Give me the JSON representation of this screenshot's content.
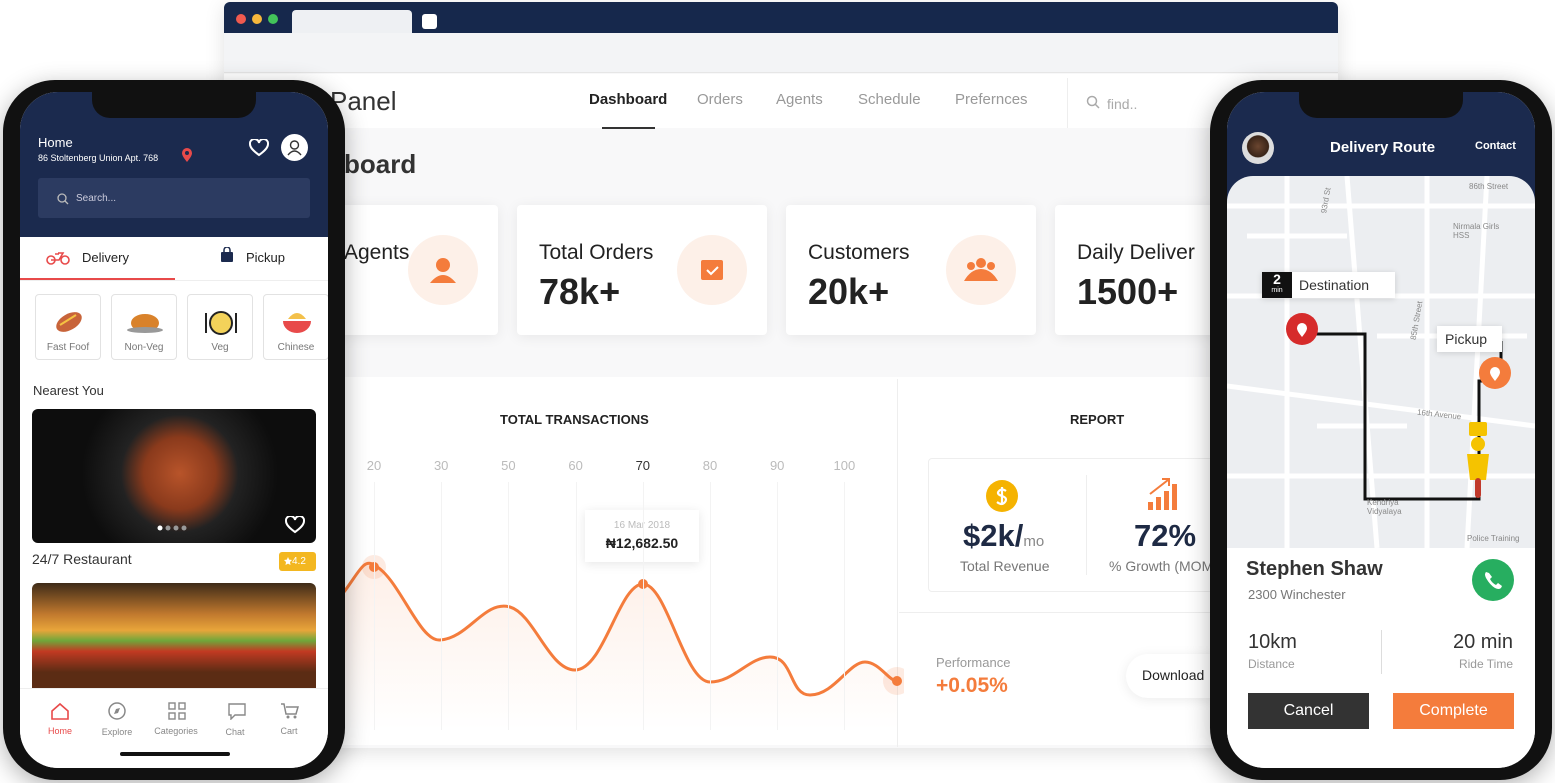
{
  "dashboard": {
    "title": "Panel",
    "nav": [
      "Dashboard",
      "Orders",
      "Agents",
      "Schedule",
      "Prefernces"
    ],
    "search_placeholder": "find..",
    "heading": "board",
    "stats": [
      {
        "label": "Agents"
      },
      {
        "label": "Total Orders",
        "value": "78k+"
      },
      {
        "label": "Customers",
        "value": "20k+"
      },
      {
        "label": "Daily Deliver",
        "value": "1500+"
      }
    ],
    "transactions": {
      "title": "TOTAL TRANSACTIONS",
      "xticks": [
        20,
        30,
        50,
        60,
        70,
        80,
        90,
        100
      ],
      "tooltip_date": "16 Mar 2018",
      "tooltip_value": "₦12,682.50"
    },
    "report": {
      "title": "REPORT",
      "revenue": "$2k/",
      "revenue_unit": "mo",
      "revenue_label": "Total Revenue",
      "growth": "72%",
      "growth_label": "% Growth (MOM",
      "performance_label": "Performance",
      "performance": "+0.05%",
      "download": "Download"
    }
  },
  "left_phone": {
    "location_title": "Home",
    "address": "86 Stoltenberg Union Apt. 768",
    "search": "Search...",
    "tabs": [
      "Delivery",
      "Pickup"
    ],
    "categories": [
      "Fast Foof",
      "Non-Veg",
      "Veg",
      "Chinese"
    ],
    "section": "Nearest You",
    "restaurant": "24/7 Restaurant",
    "rating": "4.2",
    "nav": [
      "Home",
      "Explore",
      "Categories",
      "Chat",
      "Cart"
    ]
  },
  "right_phone": {
    "title": "Delivery Route",
    "contact": "Contact",
    "eta_value": "2",
    "eta_unit": "min",
    "destination": "Destination",
    "pickup": "Pickup",
    "streets": [
      "86th Street",
      "93rd St",
      "Nirmala Girls HSS",
      "16th Avenue",
      "85th Street",
      "Kendriya Vidyalaya",
      "Police Training"
    ],
    "driver_name": "Stephen Shaw",
    "driver_address": "2300 Winchester",
    "distance": "10km",
    "distance_label": "Distance",
    "time": "20 min",
    "time_label": "Ride Time",
    "cancel": "Cancel",
    "complete": "Complete"
  }
}
